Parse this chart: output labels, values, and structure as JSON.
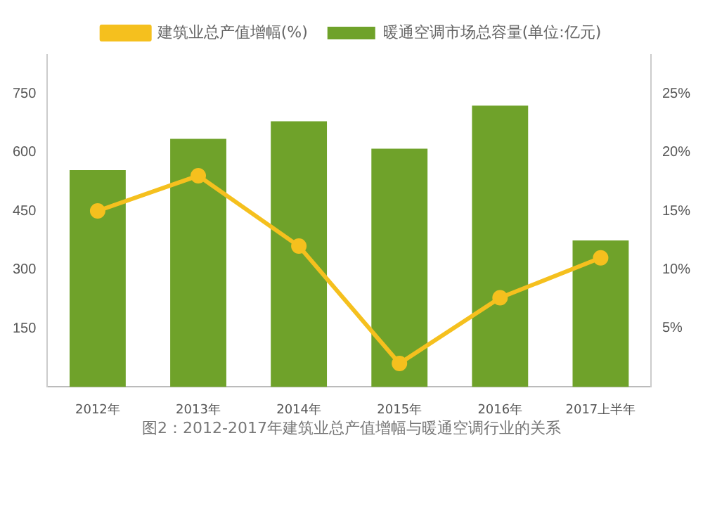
{
  "chart_data": {
    "type": "bar",
    "categories": [
      "2012年",
      "2013年",
      "2014年",
      "2015年",
      "2016年",
      "2017上半年"
    ],
    "series": [
      {
        "name": "暖通空调市场总容量(单位:亿元)",
        "color": "#6fa22a",
        "values": [
          555,
          635,
          680,
          610,
          720,
          375
        ]
      },
      {
        "name": "建筑业总产值增幅(%)",
        "type": "line",
        "axis": "y2",
        "color": "#f5c01e",
        "values": [
          15,
          18,
          12,
          2,
          7.6,
          11
        ]
      }
    ],
    "ylim": [
      0,
      850
    ],
    "yticks": [
      150,
      300,
      450,
      600,
      750
    ],
    "y2lim": [
      0,
      28.3
    ],
    "y2ticks": [
      {
        "value": 5,
        "label": "5%"
      },
      {
        "value": 10,
        "label": "10%"
      },
      {
        "value": 15,
        "label": "15%"
      },
      {
        "value": 20,
        "label": "20%"
      },
      {
        "value": 25,
        "label": "25%"
      }
    ],
    "annotations": [
      "图2：2012-2017年建筑业总产值增幅与暖通空调行业的关系"
    ],
    "legend": "top",
    "marker": "circle",
    "grid": false
  }
}
